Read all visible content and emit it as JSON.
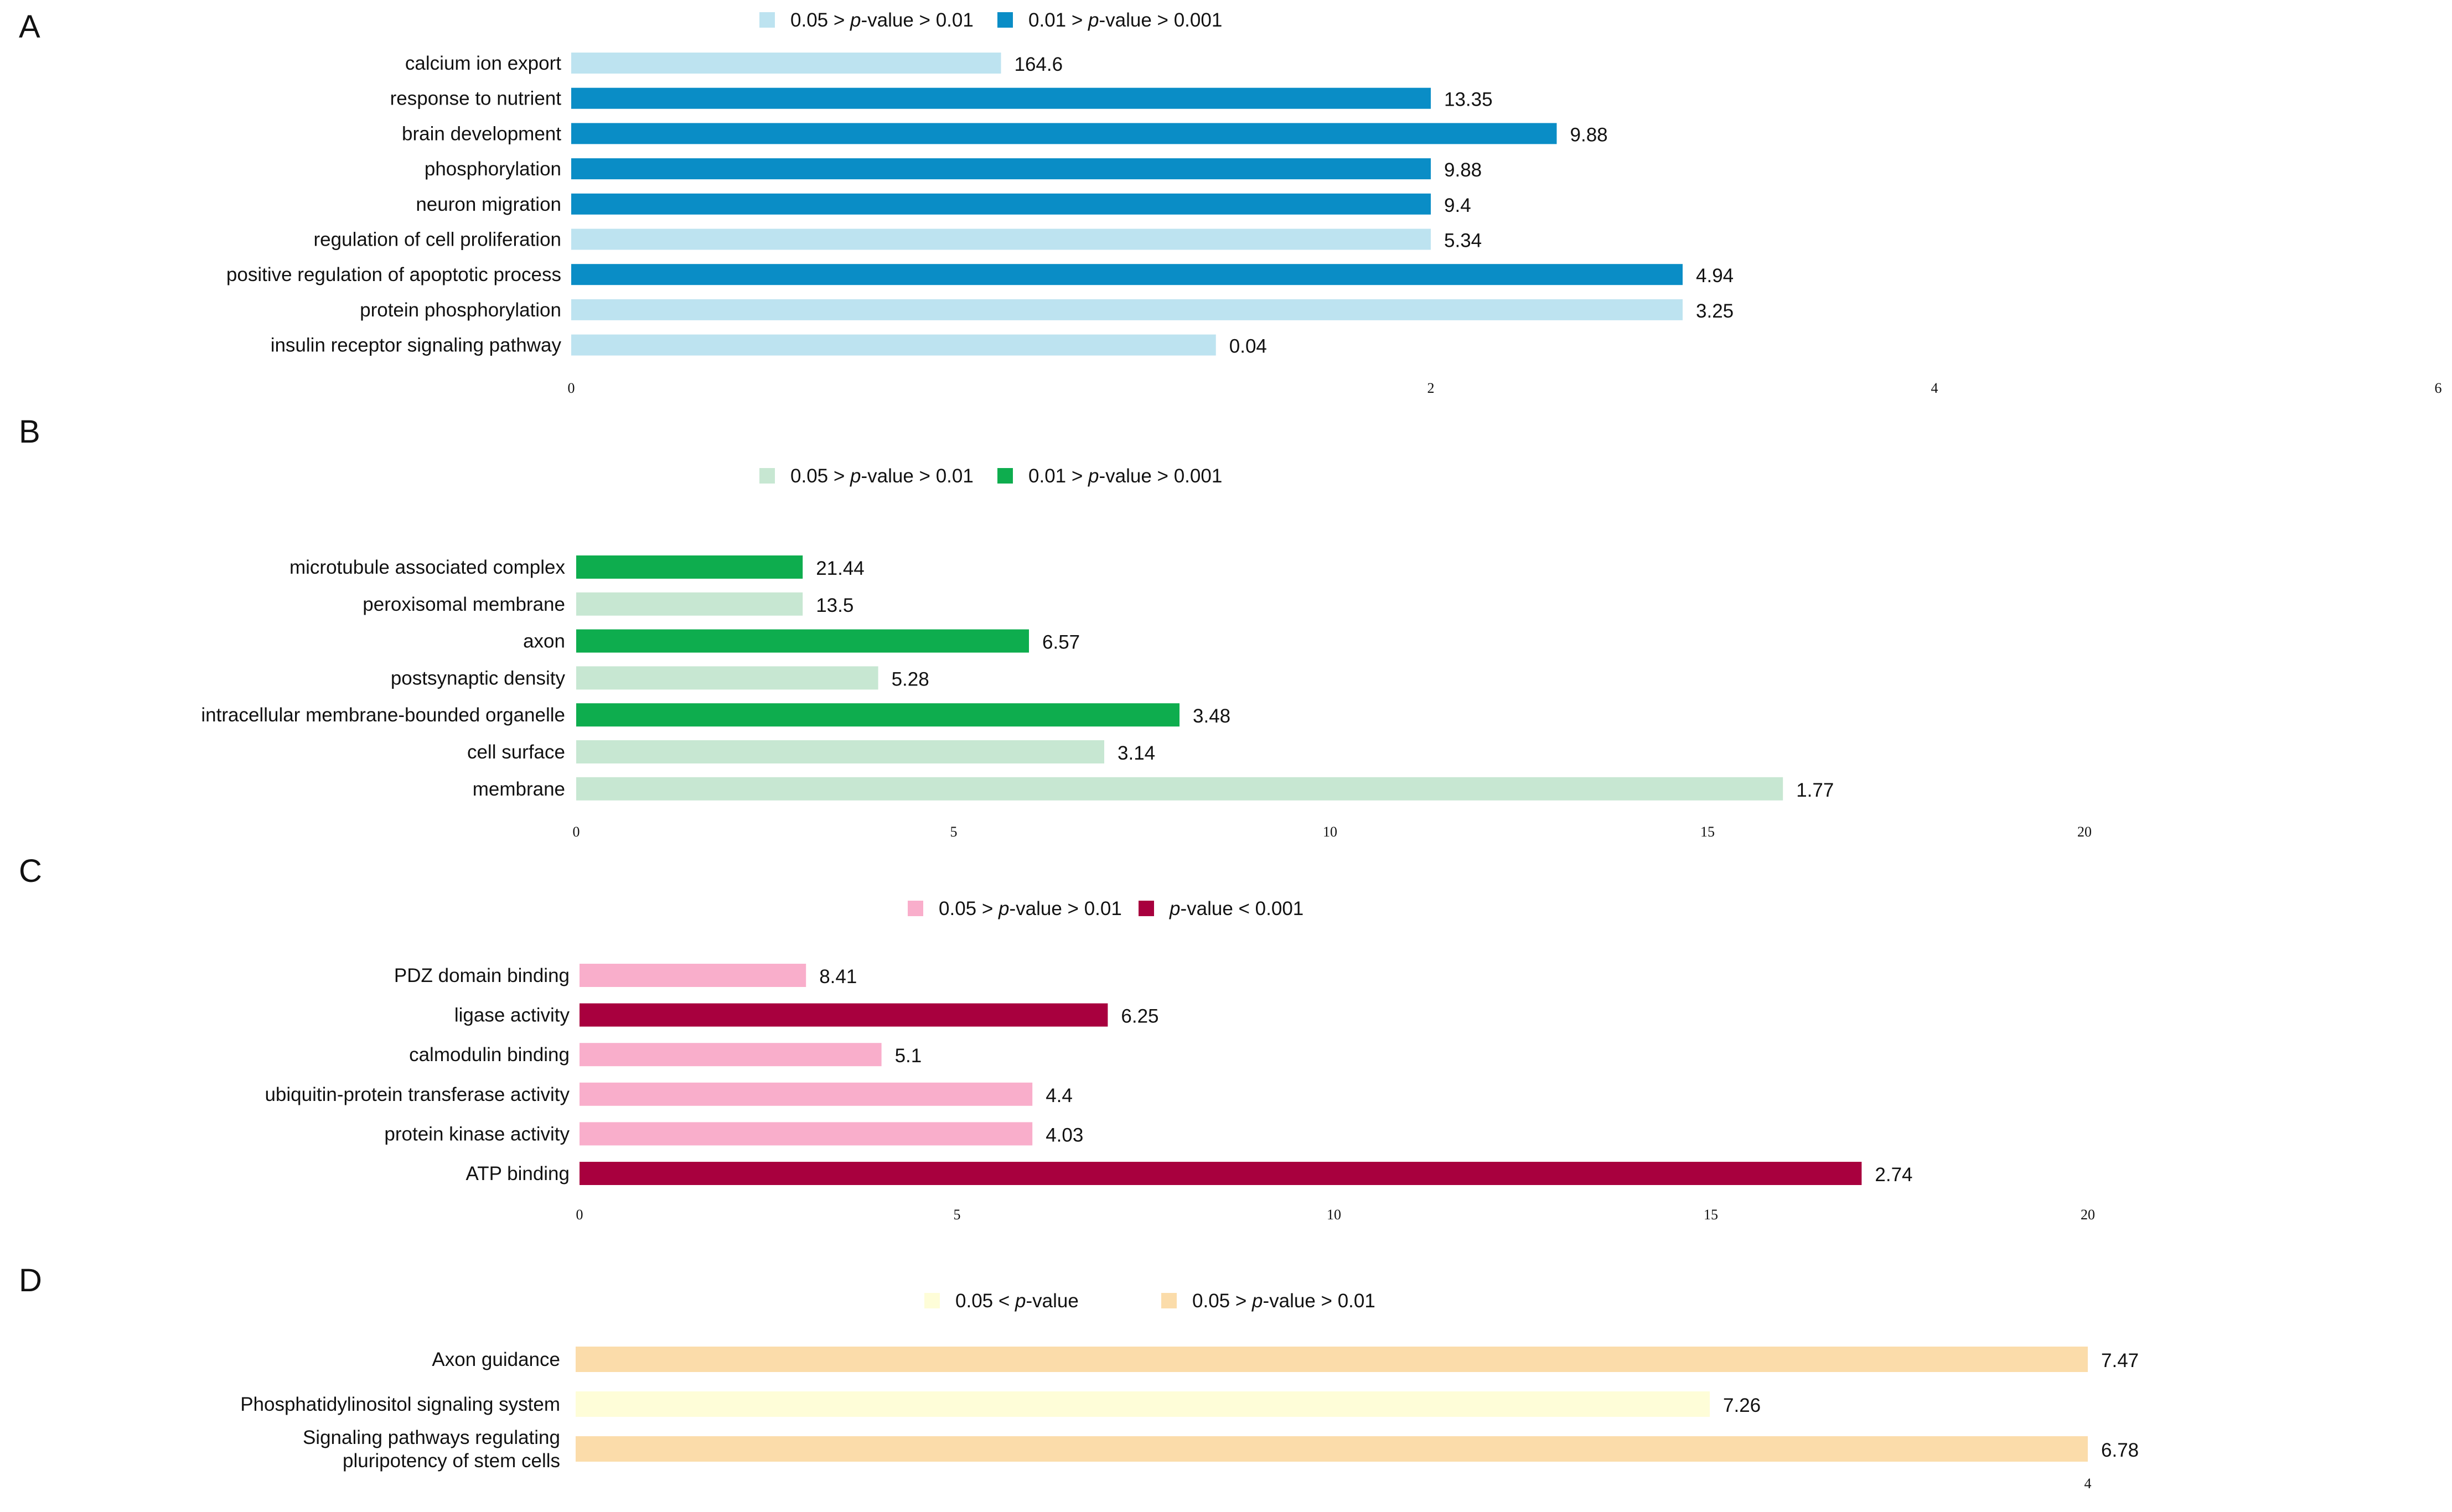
{
  "chart_data": [
    {
      "type": "bar",
      "orientation": "horizontal",
      "panel": "A",
      "legend": [
        {
          "label": "0.05 > ",
          "italic": "p",
          "label_tail": "-value > 0.01",
          "color": "#bde3f0"
        },
        {
          "label": "0.01 > ",
          "italic": "p",
          "label_tail": "-value > 0.001",
          "color": "#0a8dc6"
        }
      ],
      "categories": [
        "calcium ion export",
        "response to nutrient",
        "brain development",
        "phosphorylation",
        "neuron migration",
        "regulation of cell proliferation",
        "positive regulation of apoptotic process",
        "protein phosphorylation",
        "insulin receptor signaling pathway"
      ],
      "values": [
        1.0,
        2.0,
        2.5,
        2.0,
        2.0,
        2.0,
        3.0,
        3.0,
        1.5
      ],
      "data_labels": [
        "164.6",
        "13.35",
        "9.88",
        "9.88",
        "9.4",
        "5.34",
        "4.94",
        "3.25",
        "0.04"
      ],
      "bar_group": [
        0,
        1,
        1,
        1,
        1,
        0,
        1,
        0,
        0
      ],
      "xticks": [
        {
          "value": 0,
          "label": "0"
        },
        {
          "value": 2,
          "label": "2"
        },
        {
          "value": 4,
          "label": "4"
        },
        {
          "value": 6,
          "label": "6"
        }
      ],
      "xlim": [
        0,
        6
      ],
      "xscale": "linear, but tick spacing is non-uniform as printed"
    },
    {
      "type": "bar",
      "orientation": "horizontal",
      "panel": "B",
      "legend": [
        {
          "label": "0.05 > ",
          "italic": "p",
          "label_tail": "-value > 0.01",
          "color": "#c7e7d2"
        },
        {
          "label": "0.01 > ",
          "italic": "p",
          "label_tail": "-value > 0.001",
          "color": "#0ead4e"
        }
      ],
      "categories": [
        "microtubule associated complex",
        "peroxisomal membrane",
        "axon",
        "postsynaptic density",
        "intracellular membrane-bounded organelle",
        "cell surface",
        "membrane"
      ],
      "values": [
        3.0,
        3.0,
        6.0,
        4.0,
        8.0,
        7.0,
        16.0
      ],
      "data_labels": [
        "21.44",
        "13.5",
        "6.57",
        "5.28",
        "3.48",
        "3.14",
        "1.77"
      ],
      "bar_group": [
        1,
        0,
        1,
        0,
        1,
        0,
        0
      ],
      "xticks": [
        {
          "value": 0,
          "label": "0"
        },
        {
          "value": 5,
          "label": "5"
        },
        {
          "value": 10,
          "label": "10"
        },
        {
          "value": 15,
          "label": "15"
        },
        {
          "value": 20,
          "label": "20"
        }
      ],
      "xlim": [
        0,
        20
      ]
    },
    {
      "type": "bar",
      "orientation": "horizontal",
      "panel": "C",
      "legend": [
        {
          "label": "0.05 > ",
          "italic": "p",
          "label_tail": "-value > 0.01",
          "color": "#f9aecb"
        },
        {
          "label": "",
          "italic": "p",
          "label_tail": "-value < 0.001",
          "color": "#a8003e"
        }
      ],
      "categories": [
        "PDZ domain binding",
        "ligase activity",
        "calmodulin binding",
        "ubiquitin-protein transferase activity",
        "protein kinase activity",
        "ATP binding"
      ],
      "values": [
        3.0,
        7.0,
        4.0,
        6.0,
        6.0,
        17.0
      ],
      "data_labels": [
        "8.41",
        "6.25",
        "5.1",
        "4.4",
        "4.03",
        "2.74"
      ],
      "bar_group": [
        0,
        1,
        0,
        0,
        0,
        1
      ],
      "xticks": [
        {
          "value": 0,
          "label": "0"
        },
        {
          "value": 5,
          "label": "5"
        },
        {
          "value": 10,
          "label": "10"
        },
        {
          "value": 15,
          "label": "15"
        },
        {
          "value": 20,
          "label": "20"
        }
      ],
      "xlim": [
        0,
        20
      ]
    },
    {
      "type": "bar",
      "orientation": "horizontal",
      "panel": "D",
      "legend": [
        {
          "label": "0.05 < ",
          "italic": "p",
          "label_tail": "-value",
          "color": "#fefdd8"
        },
        {
          "label": "0.05 > ",
          "italic": "p",
          "label_tail": "-value > 0.01",
          "color": "#fbdcaa"
        }
      ],
      "categories": [
        [
          "Axon guidance"
        ],
        [
          "Phosphatidylinositol signaling system"
        ],
        [
          "Signaling pathways regulating",
          "pluripotency of stem cells"
        ]
      ],
      "values": [
        4.0,
        3.0,
        4.0
      ],
      "data_labels": [
        "7.47",
        "7.26",
        "6.78"
      ],
      "bar_group": [
        1,
        0,
        1
      ],
      "xticks": [
        {
          "value": 4,
          "label": "4"
        }
      ],
      "xlim": [
        0,
        4
      ]
    }
  ]
}
